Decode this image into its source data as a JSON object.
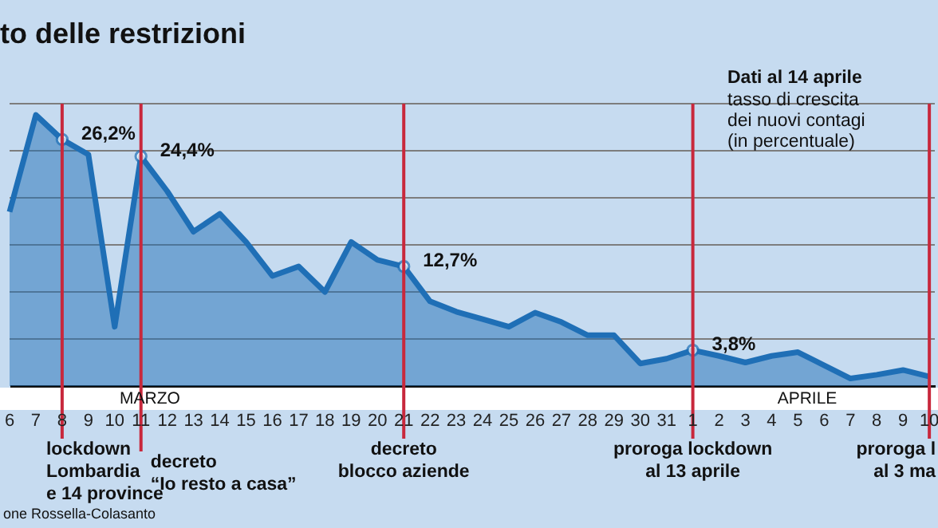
{
  "chart_data": {
    "type": "area",
    "title": "to delle restrizioni",
    "x": [
      "--03-06",
      "--03-07",
      "--03-08",
      "--03-09",
      "--03-10",
      "--03-11",
      "--03-12",
      "--03-13",
      "--03-14",
      "--03-15",
      "--03-16",
      "--03-17",
      "--03-18",
      "--03-19",
      "--03-20",
      "--03-21",
      "--03-22",
      "--03-23",
      "--03-24",
      "--03-25",
      "--03-26",
      "--03-27",
      "--03-28",
      "--03-29",
      "--03-30",
      "--03-31",
      "--04-01",
      "--04-02",
      "--04-03",
      "--04-04",
      "--04-05",
      "--04-06",
      "--04-07",
      "--04-08",
      "--04-09",
      "--04-10"
    ],
    "series": [
      {
        "color": "#1f6fb6",
        "values": [
          18.5,
          28.8,
          26.2,
          24.6,
          6.3,
          24.4,
          20.7,
          16.4,
          18.3,
          15.3,
          11.7,
          12.7,
          10.0,
          15.3,
          13.4,
          12.7,
          9.0,
          7.9,
          7.1,
          6.3,
          7.8,
          6.8,
          5.4,
          5.4,
          2.4,
          2.9,
          3.8,
          3.2,
          2.5,
          3.2,
          3.6,
          2.2,
          0.8,
          1.2,
          1.7,
          1.0
        ],
        "value_labels": [
          null,
          null,
          "26,2%",
          null,
          null,
          "24,4%",
          null,
          null,
          null,
          null,
          null,
          null,
          null,
          null,
          null,
          "12,7%",
          null,
          null,
          null,
          null,
          null,
          null,
          null,
          null,
          null,
          null,
          "3,8%",
          null,
          null,
          null,
          null,
          null,
          null,
          null,
          null,
          null
        ]
      }
    ],
    "xlim": [
      "--03-06",
      "--04-10T05:00"
    ],
    "xticks": [
      {
        "value": "--03-06",
        "label": "6"
      },
      {
        "value": "--03-07",
        "label": "7"
      },
      {
        "value": "--03-08",
        "label": "8"
      },
      {
        "value": "--03-09",
        "label": "9"
      },
      {
        "value": "--03-10",
        "label": "10"
      },
      {
        "value": "--03-11",
        "label": "11"
      },
      {
        "value": "--03-12",
        "label": "12"
      },
      {
        "value": "--03-13",
        "label": "13"
      },
      {
        "value": "--03-14",
        "label": "14"
      },
      {
        "value": "--03-15",
        "label": "15"
      },
      {
        "value": "--03-16",
        "label": "16"
      },
      {
        "value": "--03-17",
        "label": "17"
      },
      {
        "value": "--03-18",
        "label": "18"
      },
      {
        "value": "--03-19",
        "label": "19"
      },
      {
        "value": "--03-20",
        "label": "20"
      },
      {
        "value": "--03-21",
        "label": "21"
      },
      {
        "value": "--03-22",
        "label": "22"
      },
      {
        "value": "--03-23",
        "label": "23"
      },
      {
        "value": "--03-24",
        "label": "24"
      },
      {
        "value": "--03-25",
        "label": "25"
      },
      {
        "value": "--03-26",
        "label": "26"
      },
      {
        "value": "--03-27",
        "label": "27"
      },
      {
        "value": "--03-28",
        "label": "28"
      },
      {
        "value": "--03-29",
        "label": "29"
      },
      {
        "value": "--03-30",
        "label": "30"
      },
      {
        "value": "--03-31",
        "label": "31"
      },
      {
        "value": "--04-01",
        "label": "1"
      },
      {
        "value": "--04-02",
        "label": "2"
      },
      {
        "value": "--04-03",
        "label": "3"
      },
      {
        "value": "--04-04",
        "label": "4"
      },
      {
        "value": "--04-05",
        "label": "5"
      },
      {
        "value": "--04-06",
        "label": "6"
      },
      {
        "value": "--04-07",
        "label": "7"
      },
      {
        "value": "--04-08",
        "label": "8"
      },
      {
        "value": "--04-09",
        "label": "9"
      },
      {
        "value": "--04-10",
        "label": "10"
      }
    ],
    "ylim": [
      0,
      30
    ],
    "yticks": [
      {
        "value": 5,
        "label": null
      },
      {
        "value": 10,
        "label": null
      },
      {
        "value": 15,
        "label": null
      },
      {
        "value": 20,
        "label": null
      },
      {
        "value": 25,
        "label": null
      },
      {
        "value": 30,
        "label": null
      }
    ],
    "tick_labels": "x",
    "grid": "y",
    "ref_lines": [
      {
        "axis": "x",
        "value": "--03-08",
        "label": "lockdown\nLombardia\ne 14 province",
        "color": "#c8283c"
      },
      {
        "axis": "x",
        "value": "--03-11",
        "label": "decreto\n“Io resto a casa”",
        "color": "#c8283c"
      },
      {
        "axis": "x",
        "value": "--03-21",
        "label": "decreto\nblocco aziende",
        "color": "#c8283c"
      },
      {
        "axis": "x",
        "value": "--04-01",
        "label": "proroga lockdown\nal 13 aprile",
        "color": "#c8283c"
      },
      {
        "axis": "x",
        "value": "--04-10",
        "label": "proroga l\nal 3 ma",
        "color": "#c8283c"
      }
    ],
    "annotations": [
      "Dati al 14 aprile",
      "tasso di crescita\ndei nuovi contagi\n(in percentuale)",
      "one Rossella-Colasanto",
      "MARZO",
      "APRILE"
    ]
  }
}
